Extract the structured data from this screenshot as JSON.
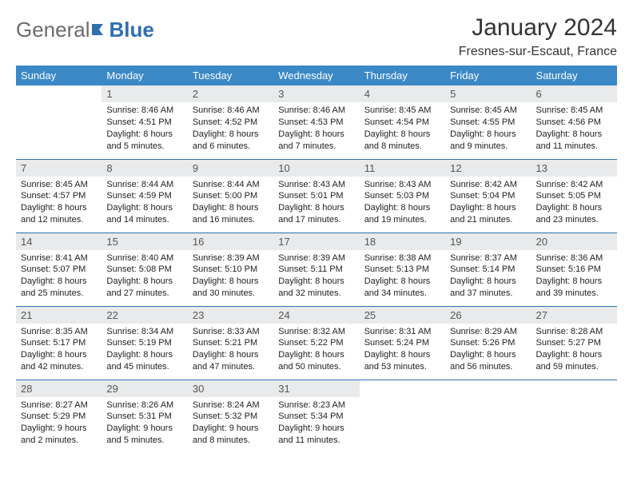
{
  "brand": {
    "part1": "General",
    "part2": "Blue"
  },
  "title": "January 2024",
  "location": "Fresnes-sur-Escaut, France",
  "colors": {
    "header_bg": "#3b88c7",
    "header_text": "#ffffff",
    "daynum_bg": "#e9eaeb",
    "row_border": "#2f6fb0",
    "logo_gray": "#6b6b6b",
    "logo_blue": "#2f6fb0"
  },
  "weekdays": [
    "Sunday",
    "Monday",
    "Tuesday",
    "Wednesday",
    "Thursday",
    "Friday",
    "Saturday"
  ],
  "weeks": [
    [
      null,
      {
        "n": "1",
        "sr": "Sunrise: 8:46 AM",
        "ss": "Sunset: 4:51 PM",
        "dl": "Daylight: 8 hours and 5 minutes."
      },
      {
        "n": "2",
        "sr": "Sunrise: 8:46 AM",
        "ss": "Sunset: 4:52 PM",
        "dl": "Daylight: 8 hours and 6 minutes."
      },
      {
        "n": "3",
        "sr": "Sunrise: 8:46 AM",
        "ss": "Sunset: 4:53 PM",
        "dl": "Daylight: 8 hours and 7 minutes."
      },
      {
        "n": "4",
        "sr": "Sunrise: 8:45 AM",
        "ss": "Sunset: 4:54 PM",
        "dl": "Daylight: 8 hours and 8 minutes."
      },
      {
        "n": "5",
        "sr": "Sunrise: 8:45 AM",
        "ss": "Sunset: 4:55 PM",
        "dl": "Daylight: 8 hours and 9 minutes."
      },
      {
        "n": "6",
        "sr": "Sunrise: 8:45 AM",
        "ss": "Sunset: 4:56 PM",
        "dl": "Daylight: 8 hours and 11 minutes."
      }
    ],
    [
      {
        "n": "7",
        "sr": "Sunrise: 8:45 AM",
        "ss": "Sunset: 4:57 PM",
        "dl": "Daylight: 8 hours and 12 minutes."
      },
      {
        "n": "8",
        "sr": "Sunrise: 8:44 AM",
        "ss": "Sunset: 4:59 PM",
        "dl": "Daylight: 8 hours and 14 minutes."
      },
      {
        "n": "9",
        "sr": "Sunrise: 8:44 AM",
        "ss": "Sunset: 5:00 PM",
        "dl": "Daylight: 8 hours and 16 minutes."
      },
      {
        "n": "10",
        "sr": "Sunrise: 8:43 AM",
        "ss": "Sunset: 5:01 PM",
        "dl": "Daylight: 8 hours and 17 minutes."
      },
      {
        "n": "11",
        "sr": "Sunrise: 8:43 AM",
        "ss": "Sunset: 5:03 PM",
        "dl": "Daylight: 8 hours and 19 minutes."
      },
      {
        "n": "12",
        "sr": "Sunrise: 8:42 AM",
        "ss": "Sunset: 5:04 PM",
        "dl": "Daylight: 8 hours and 21 minutes."
      },
      {
        "n": "13",
        "sr": "Sunrise: 8:42 AM",
        "ss": "Sunset: 5:05 PM",
        "dl": "Daylight: 8 hours and 23 minutes."
      }
    ],
    [
      {
        "n": "14",
        "sr": "Sunrise: 8:41 AM",
        "ss": "Sunset: 5:07 PM",
        "dl": "Daylight: 8 hours and 25 minutes."
      },
      {
        "n": "15",
        "sr": "Sunrise: 8:40 AM",
        "ss": "Sunset: 5:08 PM",
        "dl": "Daylight: 8 hours and 27 minutes."
      },
      {
        "n": "16",
        "sr": "Sunrise: 8:39 AM",
        "ss": "Sunset: 5:10 PM",
        "dl": "Daylight: 8 hours and 30 minutes."
      },
      {
        "n": "17",
        "sr": "Sunrise: 8:39 AM",
        "ss": "Sunset: 5:11 PM",
        "dl": "Daylight: 8 hours and 32 minutes."
      },
      {
        "n": "18",
        "sr": "Sunrise: 8:38 AM",
        "ss": "Sunset: 5:13 PM",
        "dl": "Daylight: 8 hours and 34 minutes."
      },
      {
        "n": "19",
        "sr": "Sunrise: 8:37 AM",
        "ss": "Sunset: 5:14 PM",
        "dl": "Daylight: 8 hours and 37 minutes."
      },
      {
        "n": "20",
        "sr": "Sunrise: 8:36 AM",
        "ss": "Sunset: 5:16 PM",
        "dl": "Daylight: 8 hours and 39 minutes."
      }
    ],
    [
      {
        "n": "21",
        "sr": "Sunrise: 8:35 AM",
        "ss": "Sunset: 5:17 PM",
        "dl": "Daylight: 8 hours and 42 minutes."
      },
      {
        "n": "22",
        "sr": "Sunrise: 8:34 AM",
        "ss": "Sunset: 5:19 PM",
        "dl": "Daylight: 8 hours and 45 minutes."
      },
      {
        "n": "23",
        "sr": "Sunrise: 8:33 AM",
        "ss": "Sunset: 5:21 PM",
        "dl": "Daylight: 8 hours and 47 minutes."
      },
      {
        "n": "24",
        "sr": "Sunrise: 8:32 AM",
        "ss": "Sunset: 5:22 PM",
        "dl": "Daylight: 8 hours and 50 minutes."
      },
      {
        "n": "25",
        "sr": "Sunrise: 8:31 AM",
        "ss": "Sunset: 5:24 PM",
        "dl": "Daylight: 8 hours and 53 minutes."
      },
      {
        "n": "26",
        "sr": "Sunrise: 8:29 AM",
        "ss": "Sunset: 5:26 PM",
        "dl": "Daylight: 8 hours and 56 minutes."
      },
      {
        "n": "27",
        "sr": "Sunrise: 8:28 AM",
        "ss": "Sunset: 5:27 PM",
        "dl": "Daylight: 8 hours and 59 minutes."
      }
    ],
    [
      {
        "n": "28",
        "sr": "Sunrise: 8:27 AM",
        "ss": "Sunset: 5:29 PM",
        "dl": "Daylight: 9 hours and 2 minutes."
      },
      {
        "n": "29",
        "sr": "Sunrise: 8:26 AM",
        "ss": "Sunset: 5:31 PM",
        "dl": "Daylight: 9 hours and 5 minutes."
      },
      {
        "n": "30",
        "sr": "Sunrise: 8:24 AM",
        "ss": "Sunset: 5:32 PM",
        "dl": "Daylight: 9 hours and 8 minutes."
      },
      {
        "n": "31",
        "sr": "Sunrise: 8:23 AM",
        "ss": "Sunset: 5:34 PM",
        "dl": "Daylight: 9 hours and 11 minutes."
      },
      null,
      null,
      null
    ]
  ]
}
